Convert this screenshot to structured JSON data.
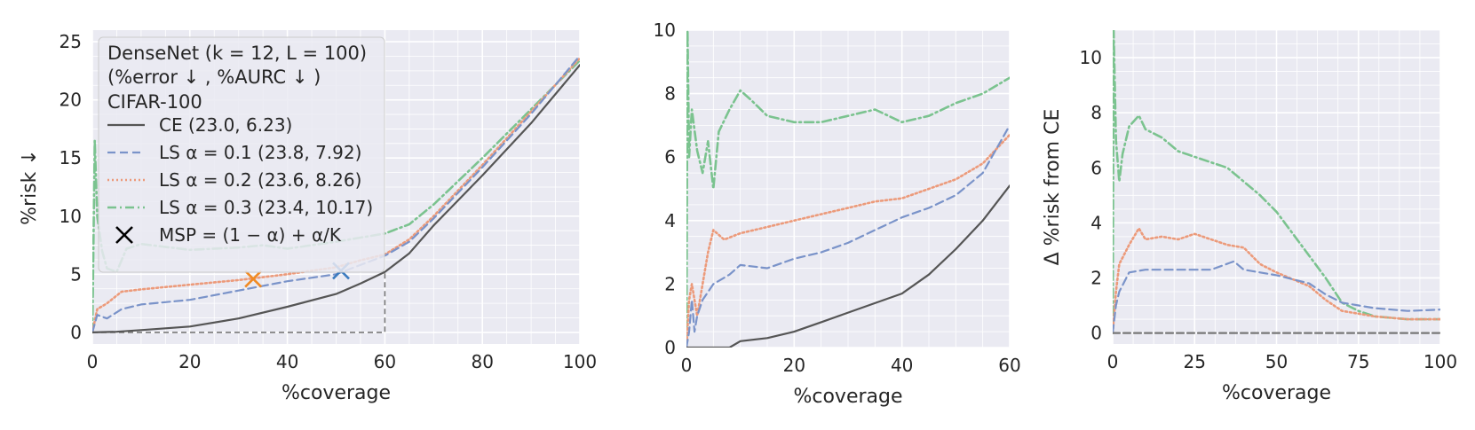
{
  "colors": {
    "ce": "#555555",
    "ls01": "#7a93c9",
    "ls02": "#ec9a7a",
    "ls03": "#7bc38f",
    "x_orange": "#f08a24",
    "x_blue": "#3b7bbf",
    "x_black": "#000000",
    "panel_bg": "#eaeaf2",
    "grid": "#ffffff"
  },
  "legend": {
    "title_line1": "DenseNet (k = 12, L = 100)",
    "title_line2": "(%error ↓ , %AURC ↓ )",
    "title_line3": "CIFAR-100",
    "entries": [
      "CE (23.0, 6.23)",
      "LS α = 0.1 (23.8, 7.92)",
      "LS α = 0.2 (23.6, 8.26)",
      "LS α = 0.3 (23.4, 10.17)",
      "MSP = (1 − α) + α/K"
    ]
  },
  "chart_data": [
    {
      "type": "line",
      "xlabel": "%coverage",
      "ylabel": "%risk ↓",
      "xlim": [
        0,
        100
      ],
      "ylim": [
        -1,
        26
      ],
      "xticks": [
        "0",
        "20",
        "40",
        "60",
        "80",
        "100"
      ],
      "yticks": [
        "0",
        "5",
        "10",
        "15",
        "20",
        "25"
      ],
      "grid": true,
      "legend_position": "upper-left",
      "series": [
        {
          "name": "CE (23.0, 6.23)",
          "key": "ce",
          "x": [
            0,
            5,
            10,
            20,
            30,
            40,
            50,
            55,
            60,
            65,
            70,
            80,
            90,
            100
          ],
          "y": [
            0,
            0.05,
            0.2,
            0.5,
            1.2,
            2.2,
            3.3,
            4.2,
            5.2,
            6.8,
            9.2,
            13.5,
            18.0,
            23.0
          ]
        },
        {
          "name": "LS α = 0.1 (23.8, 7.92)",
          "key": "ls01",
          "x": [
            0,
            1,
            3,
            6,
            10,
            20,
            30,
            40,
            50,
            55,
            60,
            65,
            70,
            80,
            90,
            100
          ],
          "y": [
            0,
            1.5,
            1.2,
            2.0,
            2.4,
            2.8,
            3.6,
            4.4,
            5.0,
            5.8,
            6.6,
            7.8,
            9.8,
            14.2,
            18.8,
            23.8
          ]
        },
        {
          "name": "LS α = 0.2 (23.6, 8.26)",
          "key": "ls02",
          "x": [
            0,
            1,
            3,
            6,
            10,
            20,
            30,
            40,
            50,
            55,
            60,
            65,
            70,
            80,
            90,
            100
          ],
          "y": [
            0,
            2.0,
            2.5,
            3.5,
            3.7,
            4.1,
            4.5,
            5.0,
            5.6,
            6.2,
            6.7,
            8.0,
            10.0,
            14.4,
            19.0,
            23.6
          ]
        },
        {
          "name": "LS α = 0.3 (23.4, 10.17)",
          "key": "ls03",
          "x": [
            0,
            0.5,
            1,
            2,
            3,
            5,
            7,
            10,
            20,
            30,
            35,
            40,
            50,
            60,
            65,
            70,
            80,
            90,
            100
          ],
          "y": [
            0,
            16.5,
            10.0,
            7.0,
            5.5,
            5.2,
            7.2,
            7.6,
            7.1,
            7.3,
            7.5,
            7.2,
            7.8,
            8.5,
            9.3,
            11.0,
            15.0,
            19.2,
            23.4
          ]
        }
      ],
      "markers": [
        {
          "label": "MSP = (1 − α) + α/K",
          "key": "x_orange",
          "x": 33,
          "y": 4.6
        },
        {
          "label": "MSP = (1 − α) + α/K",
          "key": "x_blue",
          "x": 51,
          "y": 5.3
        }
      ],
      "zoom_box": {
        "x": [
          0,
          60
        ],
        "y": [
          0,
          5.2
        ]
      }
    },
    {
      "type": "line",
      "xlabel": "%coverage",
      "ylabel": "",
      "xlim": [
        0,
        60
      ],
      "ylim": [
        0,
        10
      ],
      "xticks": [
        "0",
        "20",
        "40",
        "60"
      ],
      "yticks": [
        "0",
        "2",
        "4",
        "6",
        "8",
        "10"
      ],
      "grid": true,
      "series": [
        {
          "key": "ce",
          "x": [
            0,
            8,
            10,
            15,
            20,
            25,
            30,
            35,
            40,
            45,
            50,
            55,
            60
          ],
          "y": [
            0,
            0,
            0.2,
            0.3,
            0.5,
            0.8,
            1.1,
            1.4,
            1.7,
            2.3,
            3.1,
            4.0,
            5.1
          ]
        },
        {
          "key": "ls01",
          "x": [
            0,
            0.5,
            1,
            1.5,
            2,
            3,
            5,
            8,
            10,
            15,
            20,
            25,
            30,
            35,
            40,
            45,
            50,
            55,
            60
          ],
          "y": [
            0,
            0.5,
            1.5,
            0.5,
            1.0,
            1.5,
            2.0,
            2.3,
            2.6,
            2.5,
            2.8,
            3.0,
            3.3,
            3.7,
            4.1,
            4.4,
            4.8,
            5.5,
            7.0
          ]
        },
        {
          "key": "ls02",
          "x": [
            0,
            0.5,
            1,
            2,
            3,
            4,
            5,
            7,
            10,
            15,
            20,
            25,
            30,
            35,
            40,
            45,
            50,
            55,
            60
          ],
          "y": [
            0,
            1.5,
            2.0,
            1.0,
            2.0,
            3.0,
            3.7,
            3.4,
            3.6,
            3.8,
            4.0,
            4.2,
            4.4,
            4.6,
            4.7,
            5.0,
            5.3,
            5.8,
            6.7
          ]
        },
        {
          "key": "ls03",
          "x": [
            0,
            0.2,
            0.5,
            1,
            2,
            3,
            4,
            5,
            6,
            8,
            10,
            12,
            15,
            20,
            25,
            30,
            35,
            40,
            45,
            50,
            55,
            60
          ],
          "y": [
            0,
            10,
            6,
            7.5,
            6.2,
            5.5,
            6.5,
            5.0,
            6.8,
            7.5,
            8.1,
            7.8,
            7.3,
            7.1,
            7.1,
            7.3,
            7.5,
            7.1,
            7.3,
            7.7,
            8.0,
            8.5
          ]
        }
      ]
    },
    {
      "type": "line",
      "xlabel": "%coverage",
      "ylabel": "Δ %risk from CE",
      "xlim": [
        0,
        100
      ],
      "ylim": [
        -0.4,
        11
      ],
      "xticks": [
        "0",
        "25",
        "50",
        "75",
        "100"
      ],
      "yticks": [
        "0",
        "2",
        "4",
        "6",
        "8",
        "10"
      ],
      "grid": true,
      "series": [
        {
          "key": "ce",
          "x": [
            0,
            100
          ],
          "y": [
            0,
            0
          ]
        },
        {
          "key": "ls01",
          "x": [
            0,
            1,
            2,
            5,
            10,
            20,
            30,
            37,
            40,
            50,
            60,
            65,
            70,
            75,
            80,
            90,
            100
          ],
          "y": [
            0,
            1.0,
            1.5,
            2.2,
            2.3,
            2.3,
            2.3,
            2.6,
            2.3,
            2.1,
            1.8,
            1.4,
            1.1,
            1.0,
            0.9,
            0.8,
            0.85
          ]
        },
        {
          "key": "ls02",
          "x": [
            0,
            1,
            2,
            5,
            8,
            10,
            15,
            20,
            25,
            30,
            35,
            40,
            45,
            50,
            60,
            65,
            70,
            75,
            80,
            90,
            100
          ],
          "y": [
            0,
            1.5,
            2.5,
            3.2,
            3.8,
            3.4,
            3.5,
            3.4,
            3.6,
            3.4,
            3.2,
            3.1,
            2.5,
            2.2,
            1.7,
            1.2,
            0.8,
            0.7,
            0.6,
            0.5,
            0.5
          ]
        },
        {
          "key": "ls03",
          "x": [
            0,
            0.3,
            1,
            2,
            3,
            5,
            8,
            10,
            15,
            20,
            30,
            35,
            40,
            45,
            50,
            55,
            60,
            65,
            70,
            75,
            80,
            90,
            100
          ],
          "y": [
            0,
            11,
            7,
            5.5,
            6.5,
            7.5,
            7.9,
            7.4,
            7.1,
            6.6,
            6.2,
            6.0,
            5.5,
            5.0,
            4.4,
            3.6,
            2.8,
            2.0,
            1.1,
            0.8,
            0.6,
            0.5,
            0.5
          ]
        }
      ]
    }
  ]
}
